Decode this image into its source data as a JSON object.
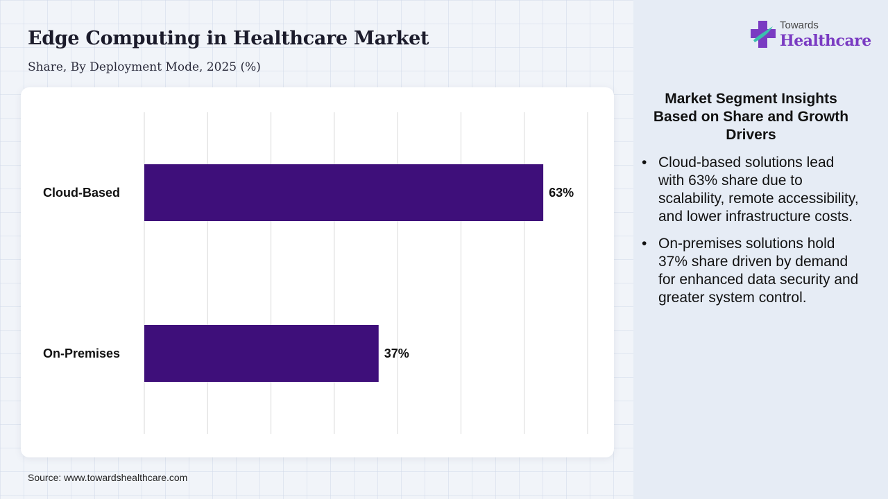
{
  "header": {
    "title": "Edge Computing in Healthcare Market",
    "subtitle": "Share, By Deployment Mode, 2025 (%)"
  },
  "logo": {
    "line1": "Towards",
    "line2": "Healthcare"
  },
  "source": "Source: www.towardshealthcare.com",
  "insights": {
    "title": "Market Segment Insights Based on Share and Growth Drivers",
    "bullet_glyph": "•",
    "items": [
      "Cloud-based solutions lead with 63% share due to scalability, remote accessibility, and lower infrastructure costs.",
      "On-premises solutions hold 37% share driven by demand for enhanced data security and greater system control."
    ]
  },
  "colors": {
    "bar": "#3e0f7a",
    "logo_purple": "#7a3bc2",
    "logo_teal": "#3bbfae",
    "grid": "#d9d9d9"
  },
  "chart_data": {
    "type": "bar",
    "orientation": "horizontal",
    "categories": [
      "Cloud-Based",
      "On-Premises"
    ],
    "values": [
      63,
      37
    ],
    "value_labels": [
      "63%",
      "37%"
    ],
    "xlim": [
      0,
      70
    ],
    "grid": true,
    "title": "Edge Computing in Healthcare Market",
    "subtitle": "Share, By Deployment Mode, 2025 (%)"
  }
}
